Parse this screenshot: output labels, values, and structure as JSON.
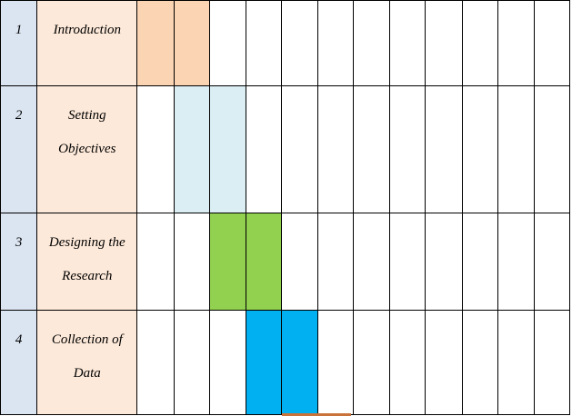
{
  "colors": {
    "number_cell": "#dbe5f1",
    "task_cell": "#fde9d9",
    "phase_1": "#fbd4b4",
    "phase_2": "#daeef3",
    "phase_3": "#92d050",
    "phase_4": "#00b0f0",
    "grid": "#000000"
  },
  "timeline_columns": 12,
  "rows": [
    {
      "number": "1",
      "task": "Introduction",
      "active_periods": [
        1,
        2
      ],
      "color_key": "phase_1"
    },
    {
      "number": "2",
      "task": "Setting Objectives",
      "active_periods": [
        2,
        3
      ],
      "color_key": "phase_2"
    },
    {
      "number": "3",
      "task": "Designing the Research",
      "active_periods": [
        3,
        4
      ],
      "color_key": "phase_3"
    },
    {
      "number": "4",
      "task": "Collection of Data",
      "active_periods": [
        4,
        5
      ],
      "color_key": "phase_4"
    }
  ]
}
